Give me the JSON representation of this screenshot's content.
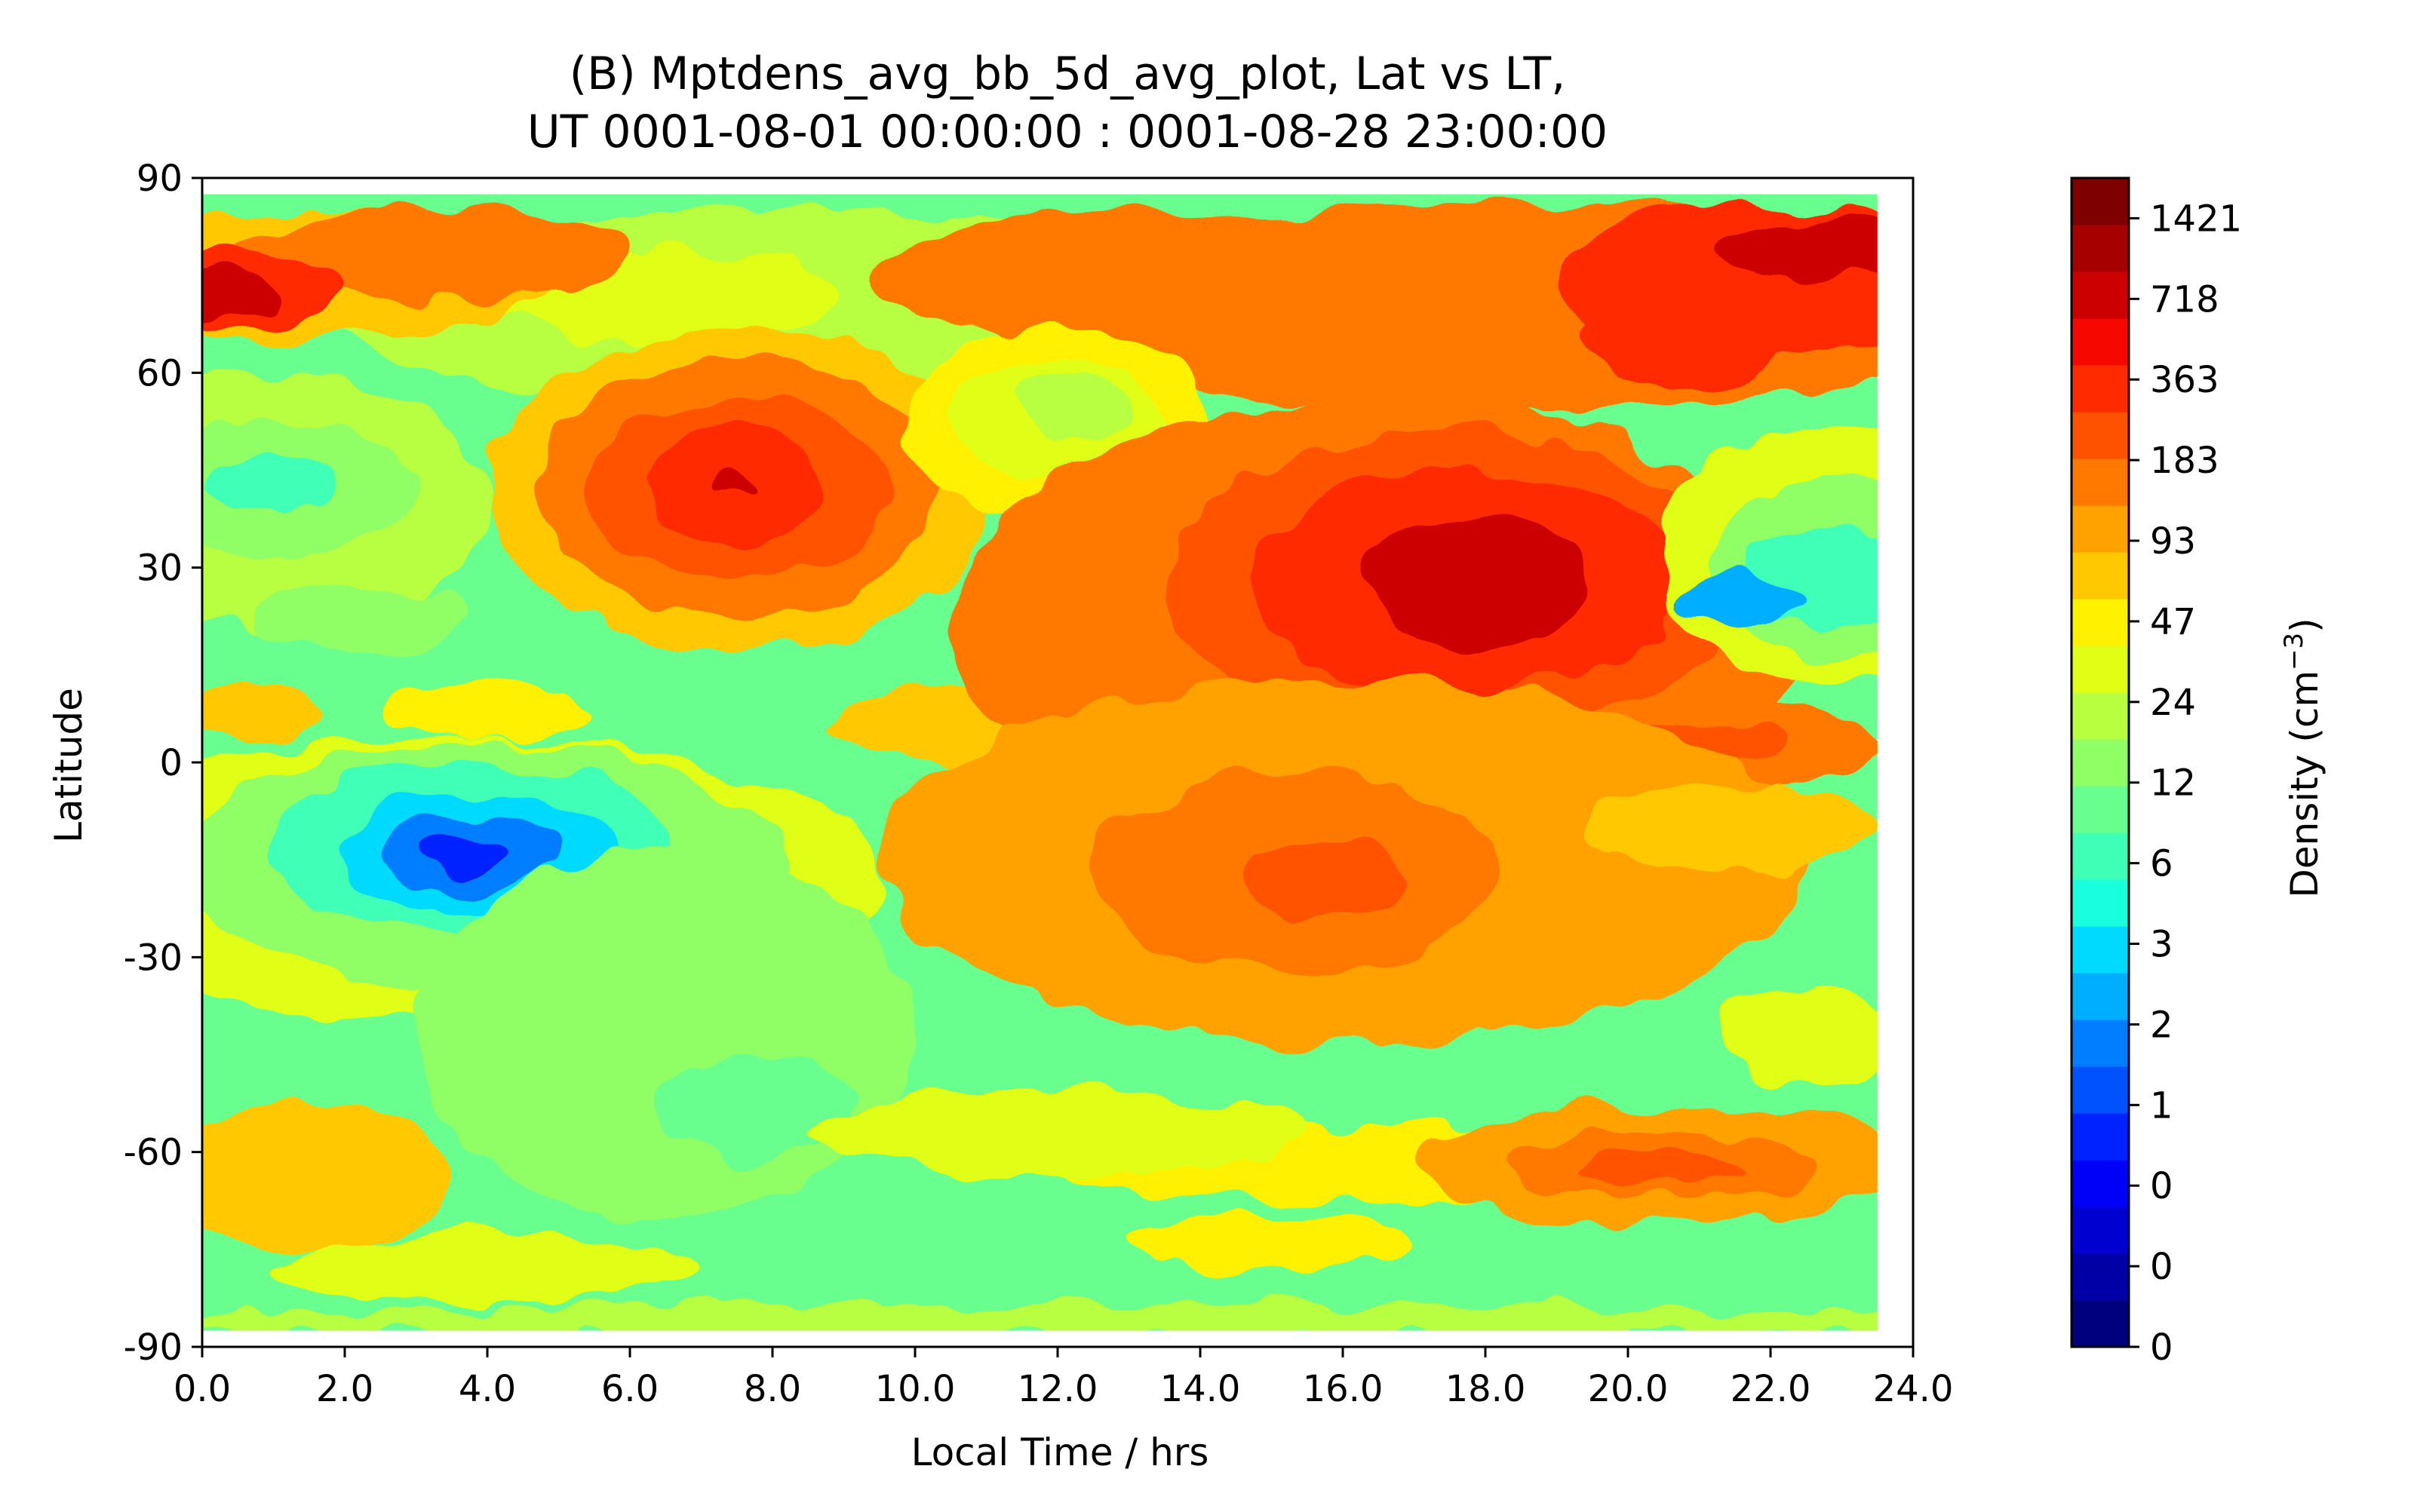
{
  "chart_data": {
    "type": "heatmap",
    "title_line1": "(B) Mptdens_avg_bb_5d_avg_plot, Lat vs LT,",
    "title_line2": "UT 0001-08-01 00:00:00 : 0001-08-28 23:00:00",
    "xlabel": "Local Time / hrs",
    "ylabel": "Latitude",
    "xlim": [
      0,
      24
    ],
    "ylim": [
      -90,
      90
    ],
    "x_ticks": [
      "0.0",
      "2.0",
      "4.0",
      "6.0",
      "8.0",
      "10.0",
      "12.0",
      "14.0",
      "16.0",
      "18.0",
      "20.0",
      "22.0",
      "24.0"
    ],
    "y_ticks": [
      "90",
      "60",
      "30",
      "0",
      "-30",
      "-60",
      "-90"
    ],
    "data_extent": {
      "x": [
        0,
        23.5
      ],
      "y": [
        -87.5,
        87.5
      ]
    },
    "background_level_index": 11,
    "colorbar": {
      "label_text": "Density (cm",
      "label_exponent": "−3",
      "label_close": ")",
      "tick_labels": [
        "0",
        "0",
        "0",
        "1",
        "2",
        "3",
        "6",
        "12",
        "24",
        "47",
        "93",
        "183",
        "363",
        "718",
        "1421"
      ],
      "colors": [
        "#00007f",
        "#0000a6",
        "#0000d1",
        "#0000fa",
        "#0022ff",
        "#0052ff",
        "#007eff",
        "#00aeff",
        "#00daff",
        "#18ffde",
        "#3fffb7",
        "#69ff8e",
        "#90ff66",
        "#b7ff3f",
        "#e1ff15",
        "#fff100",
        "#ffc800",
        "#ffa200",
        "#ff7900",
        "#ff5200",
        "#ff2a00",
        "#f60700",
        "#cd0000",
        "#a60000",
        "#7f0000"
      ]
    },
    "regions": [
      {
        "x": 8.5,
        "y": 70,
        "rx": 7,
        "ry": 15,
        "level": 13
      },
      {
        "x": 6.5,
        "y": 72,
        "rx": 2.5,
        "ry": 7,
        "level": 14
      },
      {
        "x": 1.5,
        "y": 75,
        "rx": 3.5,
        "ry": 10,
        "level": 16
      },
      {
        "x": 3.2,
        "y": 78,
        "rx": 2.8,
        "ry": 7,
        "level": 18
      },
      {
        "x": 0.4,
        "y": 73,
        "rx": 1.6,
        "ry": 6,
        "level": 20
      },
      {
        "x": 0.3,
        "y": 72,
        "rx": 0.8,
        "ry": 3.5,
        "level": 22
      },
      {
        "x": 18.5,
        "y": 70,
        "rx": 7,
        "ry": 16,
        "level": 18
      },
      {
        "x": 13,
        "y": 75,
        "rx": 3.5,
        "ry": 10,
        "level": 18
      },
      {
        "x": 22,
        "y": 74,
        "rx": 3,
        "ry": 12,
        "level": 20
      },
      {
        "x": 20.8,
        "y": 66,
        "rx": 1.4,
        "ry": 9,
        "level": 20
      },
      {
        "x": 22.8,
        "y": 79,
        "rx": 1.5,
        "ry": 5,
        "level": 22
      },
      {
        "x": 1.0,
        "y": 40,
        "rx": 3.0,
        "ry": 20,
        "level": 13
      },
      {
        "x": 1.0,
        "y": 42,
        "rx": 2.0,
        "ry": 10,
        "level": 12
      },
      {
        "x": 1.0,
        "y": 43,
        "rx": 1.0,
        "ry": 4,
        "level": 10
      },
      {
        "x": 2.2,
        "y": 22,
        "rx": 1.5,
        "ry": 5,
        "level": 12
      },
      {
        "x": 7.5,
        "y": 42,
        "rx": 3.5,
        "ry": 25,
        "level": 16
      },
      {
        "x": 7.5,
        "y": 42,
        "rx": 2.8,
        "ry": 20,
        "level": 18
      },
      {
        "x": 7.5,
        "y": 42,
        "rx": 2.1,
        "ry": 14,
        "level": 19
      },
      {
        "x": 7.5,
        "y": 43,
        "rx": 1.3,
        "ry": 9,
        "level": 20
      },
      {
        "x": 7.5,
        "y": 42,
        "rx": 0.25,
        "ry": 1.5,
        "level": 22
      },
      {
        "x": 12,
        "y": 52,
        "rx": 2.2,
        "ry": 15,
        "level": 15
      },
      {
        "x": 12,
        "y": 53,
        "rx": 1.5,
        "ry": 9,
        "level": 14
      },
      {
        "x": 12.2,
        "y": 55,
        "rx": 0.9,
        "ry": 5,
        "level": 13
      },
      {
        "x": 12.3,
        "y": 6,
        "rx": 3.5,
        "ry": 7,
        "level": 16
      },
      {
        "x": 16.5,
        "y": 22,
        "rx": 6,
        "ry": 34,
        "level": 18
      },
      {
        "x": 17.5,
        "y": 27,
        "rx": 4,
        "ry": 24,
        "level": 19
      },
      {
        "x": 17.7,
        "y": 28,
        "rx": 3,
        "ry": 17,
        "level": 20
      },
      {
        "x": 17.9,
        "y": 28,
        "rx": 1.6,
        "ry": 10,
        "level": 22
      },
      {
        "x": 23,
        "y": 32,
        "rx": 2.6,
        "ry": 20,
        "level": 14
      },
      {
        "x": 23,
        "y": 30,
        "rx": 1.8,
        "ry": 14,
        "level": 12
      },
      {
        "x": 22.8,
        "y": 28,
        "rx": 1.2,
        "ry": 8,
        "level": 10
      },
      {
        "x": 21.6,
        "y": 25,
        "rx": 0.9,
        "ry": 4,
        "level": 7
      },
      {
        "x": 21,
        "y": 3,
        "rx": 2.6,
        "ry": 7,
        "level": 18
      },
      {
        "x": 21,
        "y": 3,
        "rx": 1.4,
        "ry": 3,
        "level": 19
      },
      {
        "x": 0.7,
        "y": 8,
        "rx": 1.0,
        "ry": 4,
        "level": 16
      },
      {
        "x": 4,
        "y": 8,
        "rx": 1.5,
        "ry": 4,
        "level": 15
      },
      {
        "x": 3.5,
        "y": -18,
        "rx": 6,
        "ry": 22,
        "level": 14
      },
      {
        "x": 4.0,
        "y": -16,
        "rx": 4.2,
        "ry": 19,
        "level": 12
      },
      {
        "x": 3.8,
        "y": -13,
        "rx": 2.8,
        "ry": 13,
        "level": 10
      },
      {
        "x": 3.8,
        "y": -14,
        "rx": 2.0,
        "ry": 9,
        "level": 8
      },
      {
        "x": 3.7,
        "y": -14,
        "rx": 1.3,
        "ry": 6,
        "level": 6
      },
      {
        "x": 3.6,
        "y": -14,
        "rx": 0.7,
        "ry": 3,
        "level": 4
      },
      {
        "x": 6.5,
        "y": -42,
        "rx": 3.5,
        "ry": 28,
        "level": 12
      },
      {
        "x": 7.8,
        "y": -53,
        "rx": 1.4,
        "ry": 8,
        "level": 11
      },
      {
        "x": 16,
        "y": -15,
        "rx": 6.5,
        "ry": 28,
        "level": 17
      },
      {
        "x": 15.3,
        "y": -17,
        "rx": 2.8,
        "ry": 15,
        "level": 18
      },
      {
        "x": 15.8,
        "y": -18,
        "rx": 1.2,
        "ry": 6,
        "level": 19
      },
      {
        "x": 21.5,
        "y": -10,
        "rx": 2,
        "ry": 7,
        "level": 16
      },
      {
        "x": 17,
        "y": -62,
        "rx": 5,
        "ry": 6,
        "level": 15
      },
      {
        "x": 20.5,
        "y": -62,
        "rx": 3.5,
        "ry": 9,
        "level": 17
      },
      {
        "x": 20.5,
        "y": -62,
        "rx": 2.2,
        "ry": 5,
        "level": 18
      },
      {
        "x": 20.5,
        "y": -63,
        "rx": 1.2,
        "ry": 2.5,
        "level": 19
      },
      {
        "x": 22.5,
        "y": -42,
        "rx": 1.2,
        "ry": 8,
        "level": 14
      },
      {
        "x": 1.5,
        "y": -64,
        "rx": 2,
        "ry": 11,
        "level": 16
      },
      {
        "x": 12,
        "y": -57,
        "rx": 3.5,
        "ry": 6,
        "level": 14
      },
      {
        "x": 4,
        "y": -78,
        "rx": 3,
        "ry": 5,
        "level": 14
      },
      {
        "x": 15,
        "y": -74,
        "rx": 2,
        "ry": 4,
        "level": 15
      },
      {
        "x": 11.8,
        "y": -86,
        "rx": 12.5,
        "ry": 2.5,
        "level": 13
      }
    ]
  }
}
